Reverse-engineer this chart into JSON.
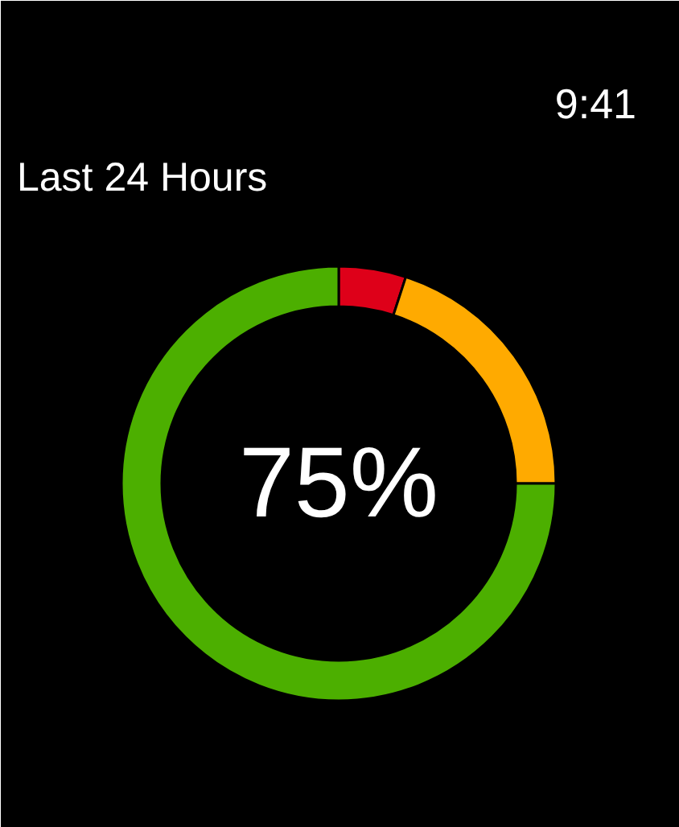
{
  "chart_data": {
    "type": "donut",
    "title": "Last 24 Hours",
    "categories": [
      null,
      null,
      null
    ],
    "values": [
      5,
      20,
      75
    ],
    "colors": [
      "#de0019",
      "#ffaa00",
      "#4caf00"
    ],
    "annotations": [
      "9:41",
      "75%"
    ]
  }
}
